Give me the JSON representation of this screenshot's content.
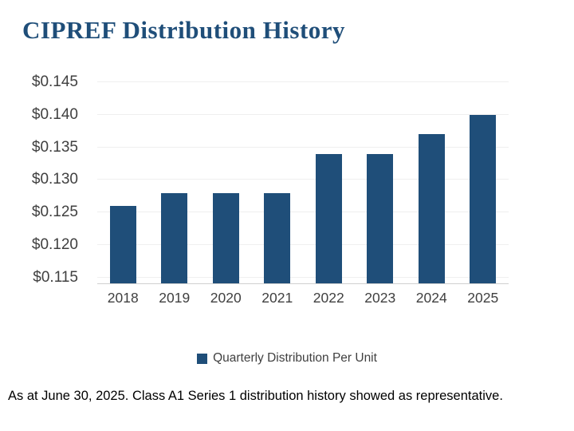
{
  "title": "CIPREF Distribution History",
  "colors": {
    "title": "#1F4E79",
    "bar": "#1F4E79",
    "axis_text": "#404040",
    "footer_text": "#000000"
  },
  "chart_data": {
    "type": "bar",
    "title": "CIPREF Distribution History",
    "categories": [
      "2018",
      "2019",
      "2020",
      "2021",
      "2022",
      "2023",
      "2024",
      "2025"
    ],
    "values": [
      0.126,
      0.128,
      0.128,
      0.128,
      0.134,
      0.134,
      0.137,
      0.14
    ],
    "series_name": "Quarterly Distribution Per Unit",
    "xlabel": "",
    "ylabel": "",
    "y_ticks": [
      "$0.115",
      "$0.120",
      "$0.125",
      "$0.130",
      "$0.135",
      "$0.140",
      "$0.145"
    ],
    "y_tick_values": [
      0.115,
      0.12,
      0.125,
      0.13,
      0.135,
      0.14,
      0.145
    ],
    "ylim": [
      0.1141,
      0.146
    ],
    "grid": true,
    "legend_position": "bottom",
    "bar_color": "#1F4E79"
  },
  "legend": {
    "label": "Quarterly Distribution Per Unit",
    "swatch_color": "#1F4E79"
  },
  "footer": "As at June 30, 2025. Class A1 Series 1 distribution history showed as representative."
}
